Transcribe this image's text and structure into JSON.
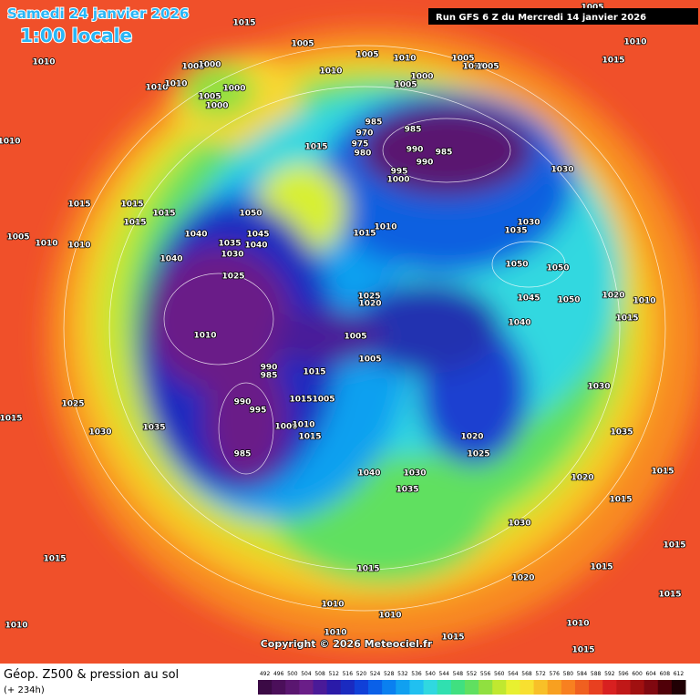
{
  "header": {
    "date": "Samedi 24 janvier 2026",
    "time": "1:00 locale",
    "run": "Run GFS 6 Z du Mercredi 14 janvier 2026"
  },
  "footer": {
    "title": "Géop. Z500 & pression au sol",
    "lead": "(+ 234h)",
    "copyright": "Copyright © 2026 Meteociel.fr"
  },
  "colorbar": {
    "ticks": [
      492,
      496,
      500,
      504,
      508,
      512,
      516,
      520,
      524,
      528,
      532,
      536,
      540,
      544,
      548,
      552,
      556,
      560,
      564,
      568,
      572,
      576,
      580,
      584,
      588,
      592,
      596,
      600,
      604,
      608,
      612
    ],
    "colors": [
      "#3b0a45",
      "#4b0f5a",
      "#5a1670",
      "#6a1e88",
      "#4a1a98",
      "#2a1aa8",
      "#1a2ac0",
      "#1040d8",
      "#0a60e8",
      "#0a80f0",
      "#10a0f0",
      "#20c0f0",
      "#30d8e0",
      "#30e0b0",
      "#40e080",
      "#60e060",
      "#90e040",
      "#c0e830",
      "#e8f030",
      "#f8e030",
      "#f8c028",
      "#f8a020",
      "#f88020",
      "#f06020",
      "#e84020",
      "#d82020",
      "#c01818",
      "#a01010",
      "#800810",
      "#500008",
      "#200004"
    ]
  },
  "isobars": [
    1015,
    1005,
    1010,
    1005,
    1000,
    1010,
    1010,
    1000,
    1005,
    1000,
    1010,
    1005,
    1010,
    1005,
    1010,
    1005,
    1000,
    1005,
    1010,
    1010,
    1015,
    1005,
    985,
    970,
    985,
    975,
    990,
    985,
    980,
    990,
    995,
    1000,
    1015,
    1030,
    1015,
    1015,
    1015,
    1015,
    1050,
    1045,
    1040,
    1035,
    1040,
    1030,
    1005,
    1010,
    1010,
    1010,
    1015,
    1030,
    1035,
    1040,
    1025,
    1050,
    1050,
    1020,
    1010,
    1025,
    1020,
    1045,
    1050,
    1015,
    1040,
    1010,
    1005,
    1005,
    990,
    985,
    1015,
    990,
    995,
    1015,
    1005,
    1030,
    1025,
    1015,
    1000,
    1010,
    1035,
    1030,
    1020,
    1015,
    1035,
    985,
    1025,
    1040,
    1030,
    1020,
    1015,
    1035,
    1015,
    1030,
    1015,
    1015,
    1015,
    1015,
    1020,
    1015,
    1010,
    1010,
    1010,
    1010,
    1015,
    1010,
    1015
  ]
}
